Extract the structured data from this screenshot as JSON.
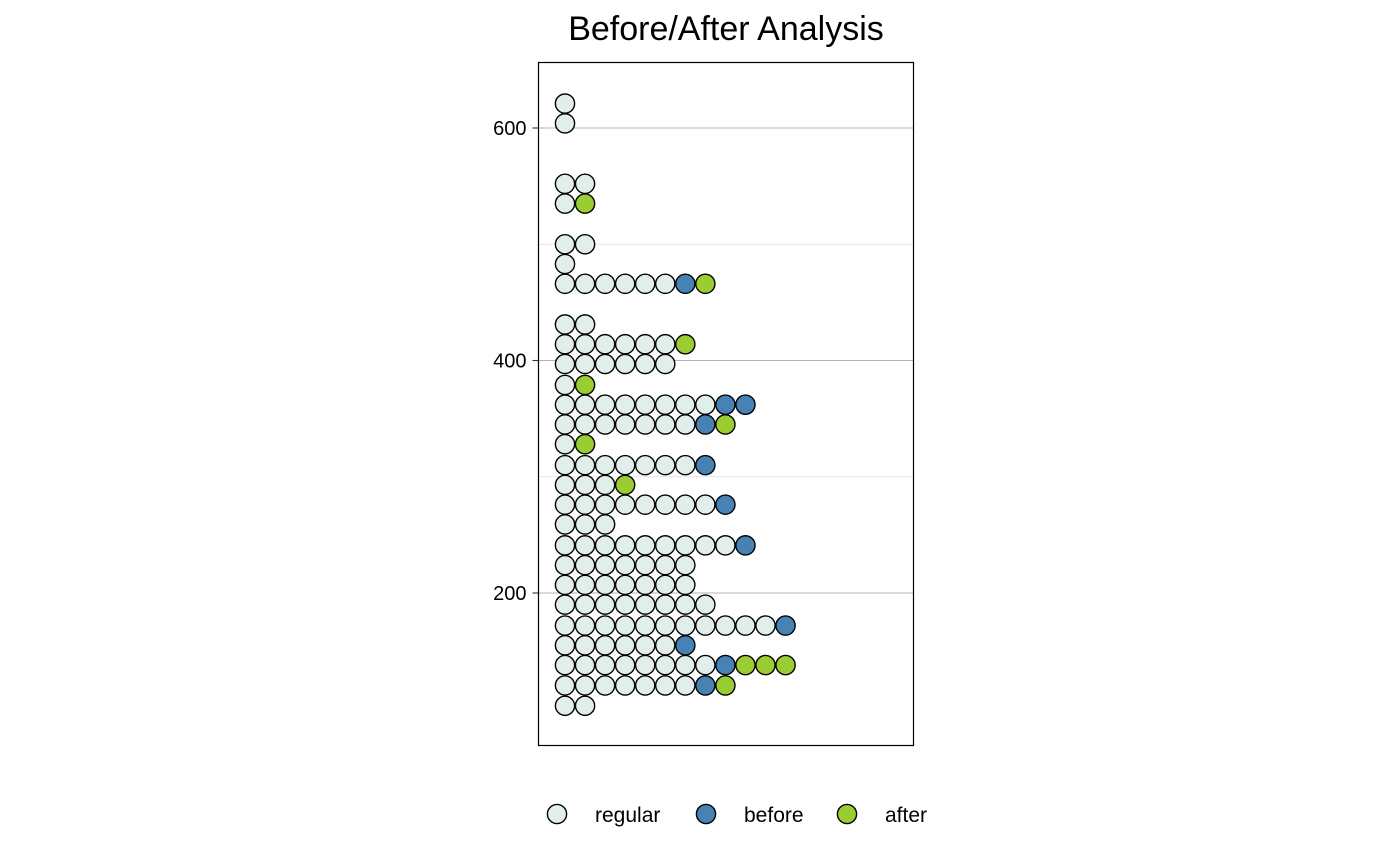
{
  "chart_data": {
    "type": "scatter",
    "subtype": "dot-plot",
    "title": "Before/After Analysis",
    "xlabel": "",
    "ylabel": "",
    "ylim": [
      70,
      658
    ],
    "yticks": [
      200,
      400,
      600
    ],
    "minor_gridlines": [
      300,
      500
    ],
    "grid": true,
    "legend_position": "bottom",
    "series": [
      {
        "name": "regular",
        "color": "#E1EEEB"
      },
      {
        "name": "before",
        "color": "#4682B4"
      },
      {
        "name": "after",
        "color": "#9ACD32"
      }
    ],
    "rows": [
      {
        "y": 103,
        "dots": [
          "regular",
          "regular"
        ]
      },
      {
        "y": 120.5,
        "dots": [
          "regular",
          "regular",
          "regular",
          "regular",
          "regular",
          "regular",
          "regular",
          "before",
          "after"
        ]
      },
      {
        "y": 138,
        "dots": [
          "regular",
          "regular",
          "regular",
          "regular",
          "regular",
          "regular",
          "regular",
          "regular",
          "before",
          "after",
          "after",
          "after"
        ]
      },
      {
        "y": 155,
        "dots": [
          "regular",
          "regular",
          "regular",
          "regular",
          "regular",
          "regular",
          "before"
        ]
      },
      {
        "y": 172,
        "dots": [
          "regular",
          "regular",
          "regular",
          "regular",
          "regular",
          "regular",
          "regular",
          "regular",
          "regular",
          "regular",
          "regular",
          "before"
        ]
      },
      {
        "y": 190,
        "dots": [
          "regular",
          "regular",
          "regular",
          "regular",
          "regular",
          "regular",
          "regular",
          "regular"
        ]
      },
      {
        "y": 207,
        "dots": [
          "regular",
          "regular",
          "regular",
          "regular",
          "regular",
          "regular",
          "regular"
        ]
      },
      {
        "y": 224,
        "dots": [
          "regular",
          "regular",
          "regular",
          "regular",
          "regular",
          "regular",
          "regular"
        ]
      },
      {
        "y": 241,
        "dots": [
          "regular",
          "regular",
          "regular",
          "regular",
          "regular",
          "regular",
          "regular",
          "regular",
          "regular",
          "before"
        ]
      },
      {
        "y": 259,
        "dots": [
          "regular",
          "regular",
          "regular"
        ]
      },
      {
        "y": 276,
        "dots": [
          "regular",
          "regular",
          "regular",
          "regular",
          "regular",
          "regular",
          "regular",
          "regular",
          "before"
        ]
      },
      {
        "y": 293,
        "dots": [
          "regular",
          "regular",
          "regular",
          "after"
        ]
      },
      {
        "y": 310,
        "dots": [
          "regular",
          "regular",
          "regular",
          "regular",
          "regular",
          "regular",
          "regular",
          "before"
        ]
      },
      {
        "y": 328,
        "dots": [
          "regular",
          "after"
        ]
      },
      {
        "y": 345,
        "dots": [
          "regular",
          "regular",
          "regular",
          "regular",
          "regular",
          "regular",
          "regular",
          "before",
          "after"
        ]
      },
      {
        "y": 362,
        "dots": [
          "regular",
          "regular",
          "regular",
          "regular",
          "regular",
          "regular",
          "regular",
          "regular",
          "before",
          "before"
        ]
      },
      {
        "y": 379,
        "dots": [
          "regular",
          "after"
        ]
      },
      {
        "y": 397,
        "dots": [
          "regular",
          "regular",
          "regular",
          "regular",
          "regular",
          "regular"
        ]
      },
      {
        "y": 414,
        "dots": [
          "regular",
          "regular",
          "regular",
          "regular",
          "regular",
          "regular",
          "after"
        ]
      },
      {
        "y": 431,
        "dots": [
          "regular",
          "regular"
        ]
      },
      {
        "y": 466,
        "dots": [
          "regular",
          "regular",
          "regular",
          "regular",
          "regular",
          "regular",
          "before",
          "after"
        ]
      },
      {
        "y": 483,
        "dots": [
          "regular"
        ]
      },
      {
        "y": 500,
        "dots": [
          "regular",
          "regular"
        ]
      },
      {
        "y": 535,
        "dots": [
          "regular",
          "after"
        ]
      },
      {
        "y": 552,
        "dots": [
          "regular",
          "regular"
        ]
      },
      {
        "y": 604,
        "dots": [
          "regular"
        ]
      },
      {
        "y": 621,
        "dots": [
          "regular"
        ]
      }
    ]
  }
}
